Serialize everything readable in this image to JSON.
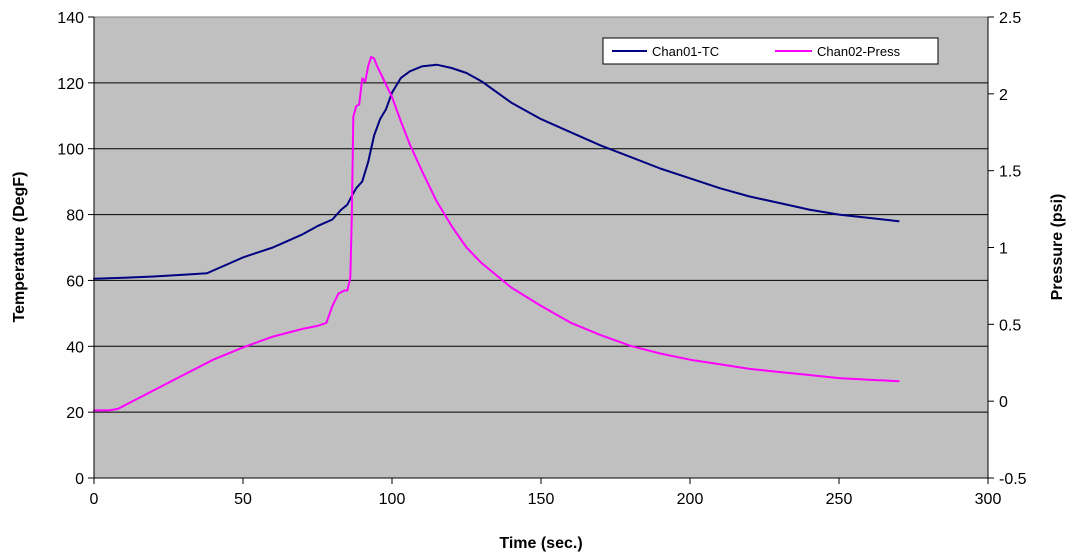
{
  "chart_data": {
    "type": "line",
    "xlabel": "Time (sec.)",
    "ylabel": "Temperature (DegF)",
    "y2label": "Pressure (psi)",
    "xlim": [
      0,
      300
    ],
    "ylim": [
      0,
      140
    ],
    "y2lim": [
      -0.5,
      2.5
    ],
    "xticks": [
      0,
      50,
      100,
      150,
      200,
      250,
      300
    ],
    "yticks": [
      0,
      20,
      40,
      60,
      80,
      100,
      120,
      140
    ],
    "y2ticks": [
      -0.5,
      0,
      0.5,
      1,
      1.5,
      2,
      2.5
    ],
    "grid": "horizontal",
    "plot_background": "#c0c0c0",
    "legend_position": "top-right",
    "series": [
      {
        "name": "Chan01-TC",
        "axis": "left",
        "color": "#000080",
        "x": [
          0,
          10,
          20,
          30,
          38,
          40,
          45,
          50,
          55,
          60,
          65,
          70,
          75,
          80,
          83,
          85,
          87,
          88,
          90,
          92,
          94,
          96,
          98,
          100,
          103,
          106,
          110,
          115,
          120,
          125,
          130,
          140,
          150,
          160,
          170,
          180,
          190,
          200,
          210,
          220,
          230,
          240,
          250,
          260,
          270
        ],
        "y": [
          60.5,
          60.8,
          61.2,
          61.7,
          62.2,
          63.0,
          65.0,
          67.0,
          68.5,
          70.0,
          72.0,
          74.0,
          76.5,
          78.5,
          81.5,
          83.0,
          86.5,
          88.0,
          90.0,
          96.0,
          104.0,
          109.0,
          112.0,
          117.0,
          121.5,
          123.5,
          125.0,
          125.5,
          124.5,
          123.0,
          120.5,
          114.0,
          109.0,
          105.0,
          101.0,
          97.5,
          94.0,
          91.0,
          88.0,
          85.5,
          83.5,
          81.5,
          80.0,
          79.0,
          78.0
        ]
      },
      {
        "name": "Chan02-Press",
        "axis": "right",
        "color": "#ff00ff",
        "x": [
          0,
          5,
          8,
          10,
          20,
          30,
          40,
          50,
          60,
          70,
          75,
          78,
          80,
          82,
          84,
          85,
          86,
          86.5,
          87,
          88,
          89,
          90,
          91,
          92,
          93,
          94,
          95,
          97,
          100,
          103,
          106,
          110,
          115,
          120,
          125,
          130,
          140,
          150,
          160,
          170,
          180,
          190,
          200,
          210,
          220,
          230,
          240,
          250,
          260,
          270
        ],
        "y": [
          -0.06,
          -0.06,
          -0.05,
          -0.03,
          0.07,
          0.17,
          0.27,
          0.35,
          0.42,
          0.47,
          0.49,
          0.51,
          0.62,
          0.7,
          0.72,
          0.72,
          0.8,
          1.2,
          1.85,
          1.92,
          1.93,
          2.1,
          2.08,
          2.18,
          2.24,
          2.23,
          2.18,
          2.1,
          1.98,
          1.82,
          1.67,
          1.5,
          1.3,
          1.14,
          1.0,
          0.9,
          0.74,
          0.62,
          0.51,
          0.43,
          0.36,
          0.31,
          0.27,
          0.24,
          0.21,
          0.19,
          0.17,
          0.15,
          0.14,
          0.13
        ]
      }
    ]
  }
}
